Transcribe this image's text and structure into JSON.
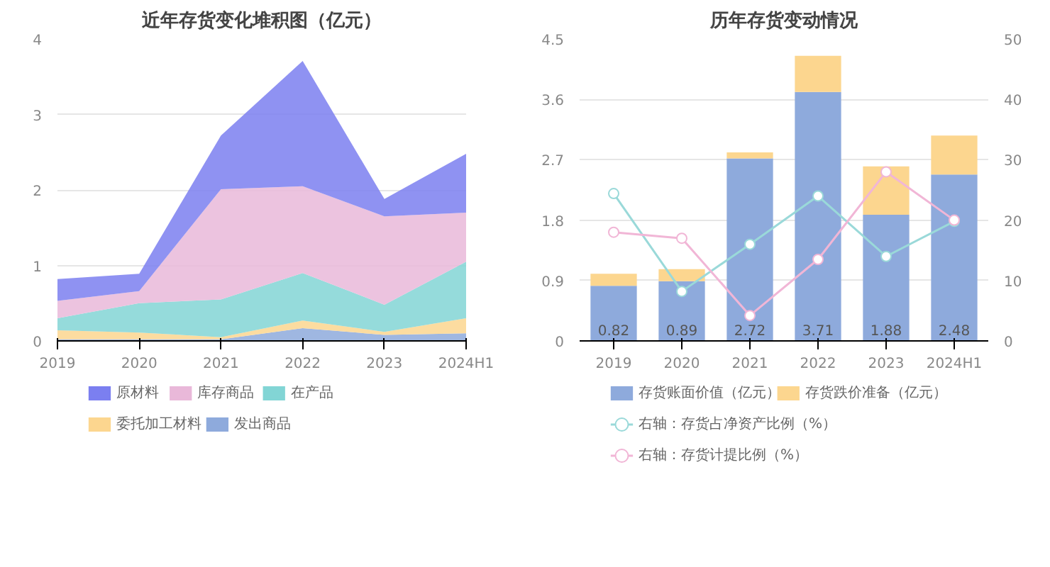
{
  "chart_data": [
    {
      "type": "area",
      "title": "近年存货变化堆积图（亿元）",
      "categories": [
        "2019",
        "2020",
        "2021",
        "2022",
        "2023",
        "2024H1"
      ],
      "stacked": true,
      "ylim": [
        0,
        4
      ],
      "yticks": [
        0,
        1,
        2,
        3,
        4
      ],
      "grid": "y",
      "legend": "bottom",
      "series": [
        {
          "name": "发出商品",
          "color": "#8eaadc",
          "values": [
            0.02,
            0.02,
            0.02,
            0.17,
            0.08,
            0.1
          ]
        },
        {
          "name": "委托加工材料",
          "color": "#fcd68f",
          "values": [
            0.12,
            0.09,
            0.03,
            0.1,
            0.04,
            0.2
          ]
        },
        {
          "name": "在产品",
          "color": "#82d5d5",
          "values": [
            0.16,
            0.39,
            0.5,
            0.63,
            0.36,
            0.75
          ]
        },
        {
          "name": "库存商品",
          "color": "#e9b8d9",
          "values": [
            0.23,
            0.16,
            1.46,
            1.15,
            1.17,
            0.65
          ]
        },
        {
          "name": "原材料",
          "color": "#7b7ff0",
          "values": [
            0.29,
            0.23,
            0.71,
            1.66,
            0.23,
            0.78
          ]
        }
      ]
    },
    {
      "type": "bar",
      "title": "历年存货变动情况",
      "categories": [
        "2019",
        "2020",
        "2021",
        "2022",
        "2023",
        "2024H1"
      ],
      "stacked": true,
      "ylim": [
        0,
        4.5
      ],
      "yticks": [
        0,
        0.9,
        1.8,
        2.7,
        3.6,
        4.5
      ],
      "y2lim": [
        0,
        50
      ],
      "y2ticks": [
        0,
        10,
        20,
        30,
        40,
        50
      ],
      "grid": "y",
      "legend": "bottom",
      "marker": "circle",
      "series": [
        {
          "name": "存货账面价值（亿元）",
          "color": "#8eaadc",
          "values": [
            0.82,
            0.89,
            2.72,
            3.71,
            1.88,
            2.48
          ],
          "value_labels": [
            "0.82",
            "0.89",
            "2.72",
            "3.71",
            "1.88",
            "2.48"
          ]
        },
        {
          "name": "存货跌价准备（亿元）",
          "color": "#fcd68f",
          "values": [
            0.18,
            0.18,
            0.09,
            0.54,
            0.72,
            0.58
          ]
        },
        {
          "name": "右轴：存货占净资产比例（%）",
          "type": "line",
          "axis": "y2",
          "color": "#9ad9d9",
          "values": [
            24.4,
            8.2,
            16,
            24,
            14,
            19.8
          ]
        },
        {
          "name": "右轴：存货计提比例（%）",
          "type": "line",
          "axis": "y2",
          "color": "#f1b6d6",
          "values": [
            18,
            17,
            4.2,
            13.5,
            28,
            20
          ]
        }
      ]
    }
  ]
}
